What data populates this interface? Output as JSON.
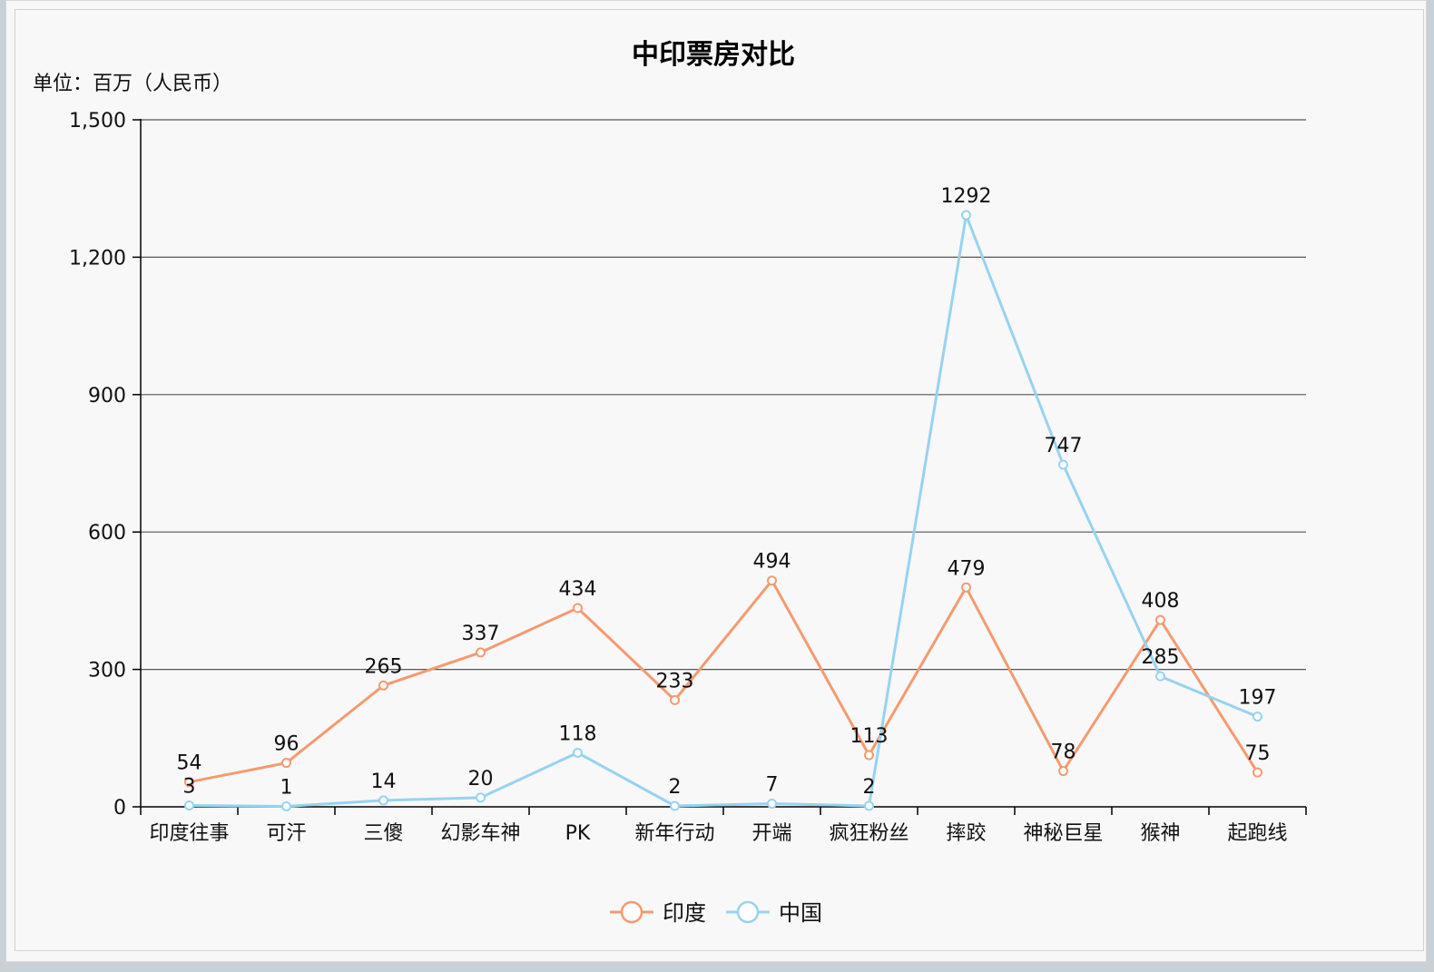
{
  "chart_data": {
    "type": "line",
    "title": "中印票房对比",
    "unit_label": "单位：百万（人民币）",
    "categories": [
      "印度往事",
      "可汗",
      "三傻",
      "幻影车神",
      "PK",
      "新年行动",
      "开端",
      "疯狂粉丝",
      "摔跤",
      "神秘巨星",
      "猴神",
      "起跑线"
    ],
    "series": [
      {
        "name": "印度",
        "color": "#f59a70",
        "values": [
          54,
          96,
          265,
          337,
          434,
          233,
          494,
          113,
          479,
          78,
          408,
          75
        ]
      },
      {
        "name": "中国",
        "color": "#97d3f1",
        "values": [
          3,
          1,
          14,
          20,
          118,
          2,
          7,
          2,
          1292,
          747,
          285,
          197
        ]
      }
    ],
    "ylim": [
      0,
      1500
    ],
    "yticks": [
      0,
      300,
      600,
      900,
      1200,
      1500
    ],
    "ytick_labels": [
      "0",
      "300",
      "600",
      "900",
      "1,200",
      "1,500"
    ],
    "grid": true,
    "legend_position": "bottom-center"
  }
}
